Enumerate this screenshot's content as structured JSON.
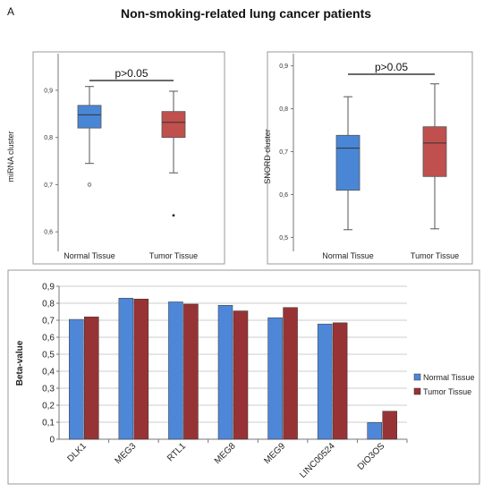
{
  "panel_letter": "A",
  "title": "Non-smoking-related lung cancer patients",
  "colors": {
    "normal": "#4a86d6",
    "tumor": "#c0504d",
    "bar_normal": "#4f87d8",
    "bar_tumor": "#973335"
  },
  "chart_data": [
    {
      "type": "box",
      "ylabel": "miRNA cluster",
      "ylim": [
        0.57,
        0.97
      ],
      "yticks": [
        0.6,
        0.7,
        0.8,
        0.9
      ],
      "ytick_labels": [
        "0,6",
        "0,7",
        "0,8",
        "0,9"
      ],
      "categories": [
        "Normal Tissue",
        "Tumor Tissue"
      ],
      "annotation": "p>0.05",
      "boxes": [
        {
          "name": "Normal Tissue",
          "min": 0.745,
          "q1": 0.82,
          "median": 0.848,
          "q3": 0.868,
          "max": 0.908,
          "outliers": [
            0.7
          ]
        },
        {
          "name": "Tumor Tissue",
          "min": 0.725,
          "q1": 0.8,
          "median": 0.832,
          "q3": 0.855,
          "max": 0.898,
          "outliers": [
            0.635
          ]
        }
      ]
    },
    {
      "type": "box",
      "ylabel": "SNORD cluster",
      "ylim": [
        0.48,
        0.92
      ],
      "yticks": [
        0.5,
        0.6,
        0.7,
        0.8,
        0.9
      ],
      "ytick_labels": [
        "0,5",
        "0,6",
        "0,7",
        "0,8",
        "0,9"
      ],
      "categories": [
        "Normal Tissue",
        "Tumor Tissue"
      ],
      "annotation": "p>0.05",
      "boxes": [
        {
          "name": "Normal Tissue",
          "min": 0.518,
          "q1": 0.61,
          "median": 0.708,
          "q3": 0.738,
          "max": 0.828,
          "outliers": []
        },
        {
          "name": "Tumor Tissue",
          "min": 0.52,
          "q1": 0.642,
          "median": 0.72,
          "q3": 0.758,
          "max": 0.858,
          "outliers": []
        }
      ]
    },
    {
      "type": "bar",
      "ylabel": "Beta-value",
      "ylim": [
        0,
        0.9
      ],
      "yticks": [
        0,
        0.1,
        0.2,
        0.3,
        0.4,
        0.5,
        0.6,
        0.7,
        0.8,
        0.9
      ],
      "ytick_labels": [
        "0",
        "0,1",
        "0,2",
        "0,3",
        "0,4",
        "0,5",
        "0,6",
        "0,7",
        "0,8",
        "0,9"
      ],
      "grid": true,
      "legend_position": "right",
      "categories": [
        "DLK1",
        "MEG3",
        "RTL1",
        "MEG8",
        "MEG9",
        "LINC00524",
        "DIO3OS"
      ],
      "series": [
        {
          "name": "Normal Tissue",
          "values": [
            0.705,
            0.83,
            0.808,
            0.788,
            0.715,
            0.678,
            0.098
          ]
        },
        {
          "name": "Tumor Tissue",
          "values": [
            0.72,
            0.825,
            0.795,
            0.755,
            0.775,
            0.685,
            0.165
          ]
        }
      ]
    }
  ]
}
